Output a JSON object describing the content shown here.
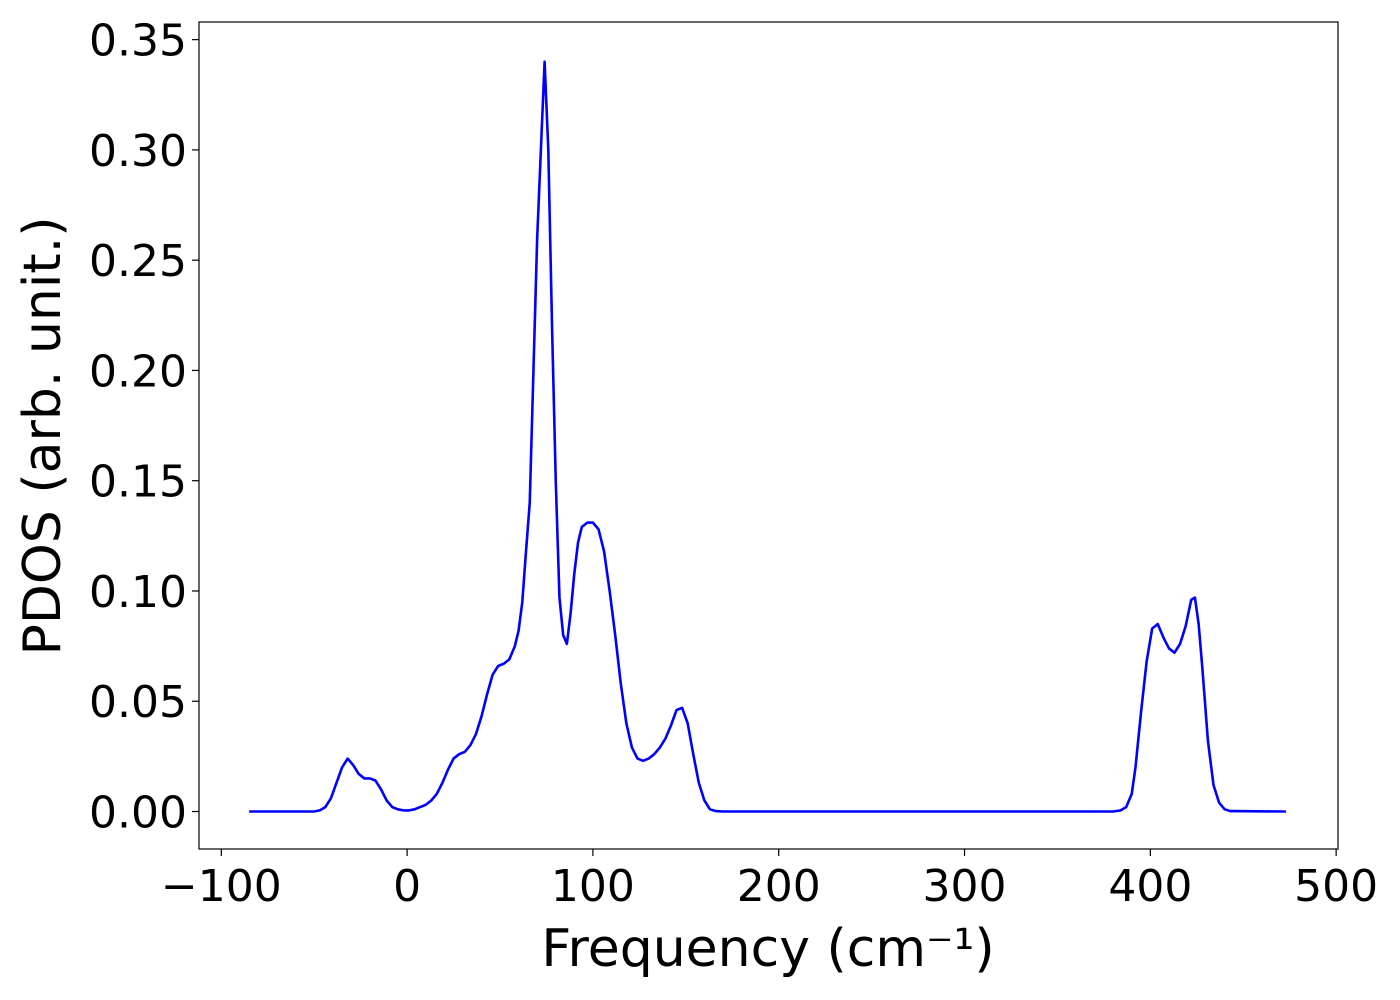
{
  "chart_data": {
    "type": "line",
    "xlabel": "Frequency (cm⁻¹)",
    "ylabel": "PDOS (arb. unit.)",
    "xlim": [
      -112,
      501
    ],
    "ylim": [
      -0.017,
      0.358
    ],
    "xticks": [
      {
        "value": -100,
        "label": "−100"
      },
      0,
      100,
      200,
      300,
      400,
      500
    ],
    "yticks": [
      {
        "value": 0,
        "label": "0.00"
      },
      {
        "value": 0.05,
        "label": "0.05"
      },
      {
        "value": 0.1,
        "label": "0.10"
      },
      {
        "value": 0.15,
        "label": "0.15"
      },
      {
        "value": 0.2,
        "label": "0.20"
      },
      {
        "value": 0.25,
        "label": "0.25"
      },
      {
        "value": 0.3,
        "label": "0.30"
      },
      {
        "value": 0.35,
        "label": "0.35"
      }
    ],
    "grid": false,
    "x": [
      -85,
      -50,
      -47,
      -44,
      -41,
      -38,
      -35,
      -32,
      -29,
      -26,
      -23,
      -20,
      -17,
      -14,
      -11,
      -8,
      -5,
      -2,
      1,
      4,
      7,
      10,
      13,
      16,
      19,
      22,
      25,
      28,
      31,
      34,
      37,
      40,
      43,
      46,
      49,
      52,
      55,
      58,
      60,
      62,
      64,
      66,
      68,
      70,
      72,
      74,
      76,
      78,
      80,
      82,
      84,
      86,
      88,
      90,
      92,
      94,
      97,
      100,
      103,
      106,
      109,
      112,
      115,
      118,
      121,
      124,
      127,
      130,
      133,
      136,
      139,
      142,
      145,
      148,
      151,
      154,
      157,
      160,
      163,
      166,
      170,
      380,
      384,
      387,
      390,
      392,
      395,
      398,
      401,
      404,
      407,
      410,
      413,
      416,
      419,
      422,
      424,
      426,
      428,
      431,
      434,
      437,
      440,
      443,
      473
    ],
    "series": [
      {
        "color": "#0000ff",
        "values": [
          0,
          0,
          0.0005,
          0.002,
          0.006,
          0.013,
          0.02,
          0.024,
          0.021,
          0.017,
          0.015,
          0.015,
          0.014,
          0.01,
          0.005,
          0.002,
          0.001,
          0.0005,
          0.0005,
          0.001,
          0.002,
          0.003,
          0.005,
          0.008,
          0.013,
          0.019,
          0.024,
          0.026,
          0.027,
          0.03,
          0.035,
          0.043,
          0.053,
          0.062,
          0.066,
          0.067,
          0.069,
          0.075,
          0.082,
          0.095,
          0.118,
          0.14,
          0.2,
          0.26,
          0.3,
          0.34,
          0.3,
          0.22,
          0.15,
          0.097,
          0.08,
          0.076,
          0.09,
          0.108,
          0.122,
          0.129,
          0.131,
          0.131,
          0.128,
          0.118,
          0.1,
          0.08,
          0.058,
          0.04,
          0.029,
          0.024,
          0.023,
          0.024,
          0.026,
          0.029,
          0.033,
          0.039,
          0.046,
          0.047,
          0.04,
          0.026,
          0.013,
          0.005,
          0.001,
          0.0002,
          0,
          0,
          0.0005,
          0.002,
          0.008,
          0.02,
          0.045,
          0.068,
          0.083,
          0.085,
          0.079,
          0.074,
          0.072,
          0.076,
          0.084,
          0.096,
          0.097,
          0.085,
          0.065,
          0.032,
          0.012,
          0.004,
          0.001,
          0.0002,
          0
        ]
      }
    ]
  }
}
